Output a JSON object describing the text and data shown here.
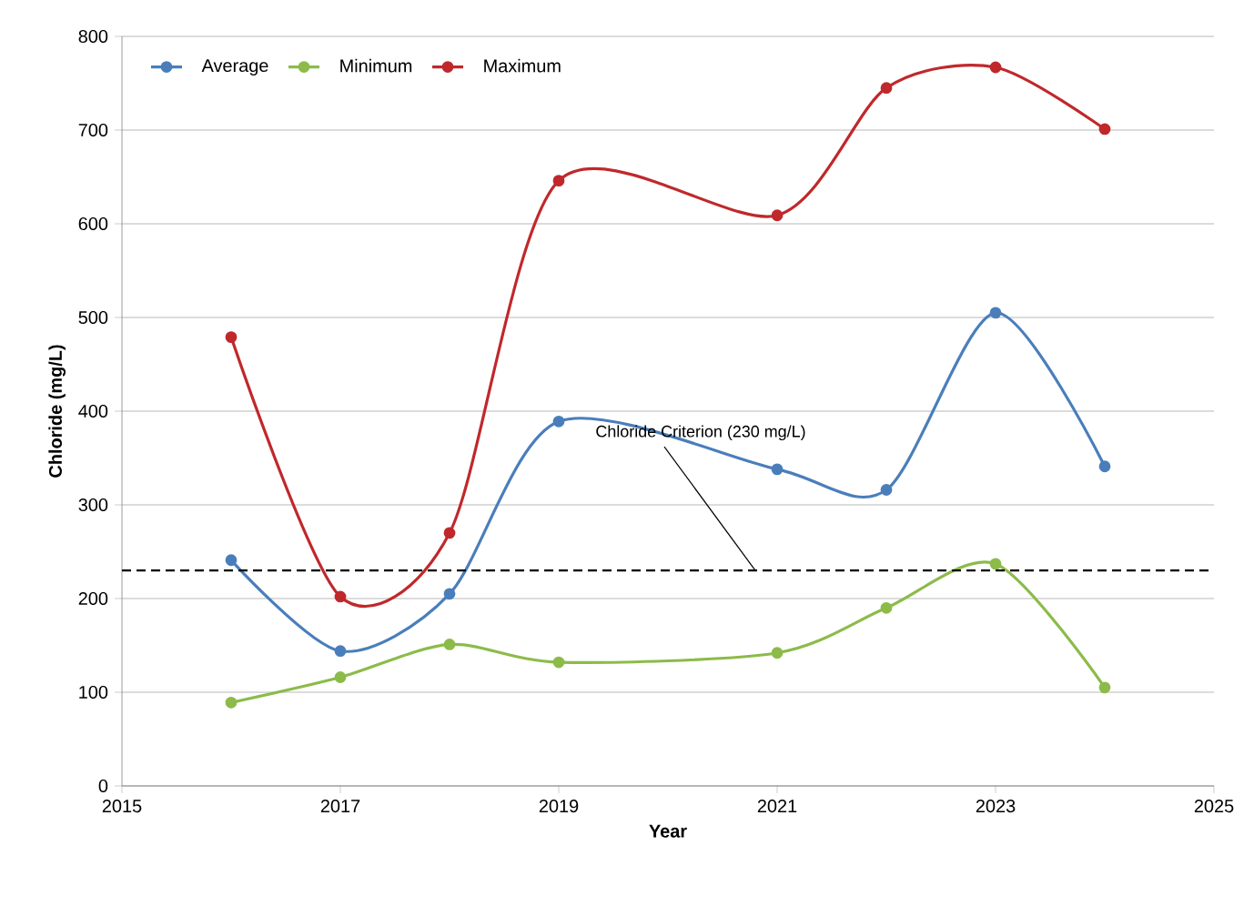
{
  "chart_data": {
    "type": "line",
    "xlabel": "Year",
    "ylabel": "Chloride (mg/L)",
    "x": [
      2016,
      2017,
      2018,
      2019,
      2021,
      2022,
      2023,
      2024
    ],
    "series": [
      {
        "name": "Average",
        "color": "#4a7ebb",
        "values": [
          241,
          144,
          205,
          389,
          338,
          316,
          505,
          341
        ]
      },
      {
        "name": "Minimum",
        "color": "#8cbb4a",
        "values": [
          89,
          116,
          151,
          132,
          142,
          190,
          237,
          105
        ]
      },
      {
        "name": "Maximum",
        "color": "#c0282b",
        "values": [
          479,
          202,
          270,
          646,
          609,
          745,
          767,
          701
        ]
      }
    ],
    "xlim": [
      2015,
      2025
    ],
    "xticks": [
      2015,
      2017,
      2019,
      2021,
      2023,
      2025
    ],
    "ylim": [
      0,
      800
    ],
    "yticks": [
      0,
      100,
      200,
      300,
      400,
      500,
      600,
      700,
      800
    ],
    "ref_lines": [
      {
        "axis": "y",
        "value": 230,
        "label": "Chloride Criterion (230 mg/L)",
        "color": "#000000",
        "line_style": "dashed"
      }
    ],
    "grid": "y",
    "legend": "top left",
    "marker": "circle",
    "line_style": "solid"
  }
}
